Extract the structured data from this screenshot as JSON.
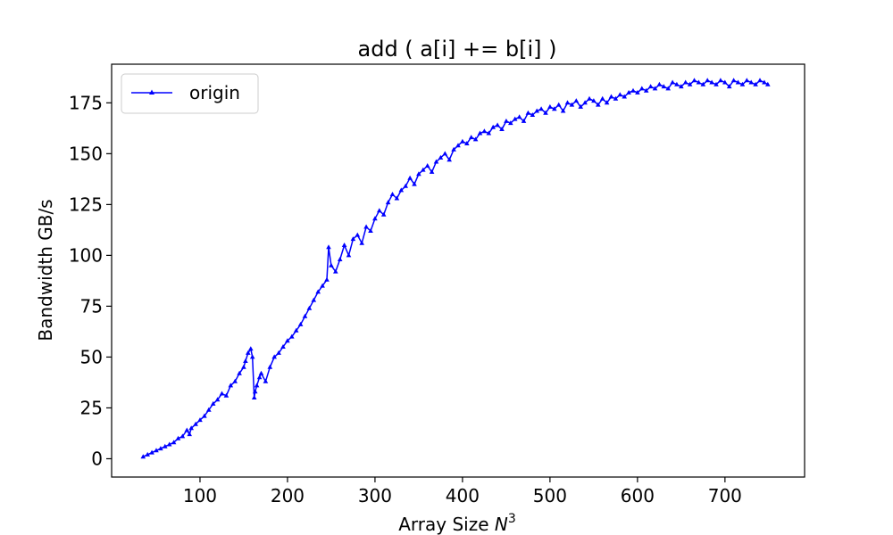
{
  "chart_data": {
    "type": "line",
    "title": "add ( a[i] += b[i] )",
    "xlabel": "Array Size",
    "xlabel_var": "N",
    "xlabel_sup": "3",
    "ylabel": "Bandwidth GB/s",
    "xlim": [
      -1,
      791
    ],
    "ylim": [
      -9,
      194
    ],
    "xticks": [
      100,
      200,
      300,
      400,
      500,
      600,
      700
    ],
    "yticks": [
      0,
      25,
      50,
      75,
      100,
      125,
      150,
      175
    ],
    "grid": false,
    "legend_position": "top-left",
    "series": [
      {
        "name": "origin",
        "color": "#0000ff",
        "marker": "triangle",
        "x": [
          35,
          40,
          45,
          50,
          55,
          60,
          65,
          70,
          75,
          80,
          85,
          88,
          90,
          95,
          100,
          105,
          110,
          115,
          120,
          125,
          130,
          135,
          140,
          145,
          150,
          152,
          155,
          158,
          160,
          162,
          163,
          165,
          168,
          170,
          175,
          180,
          185,
          190,
          195,
          200,
          205,
          210,
          215,
          220,
          225,
          230,
          235,
          240,
          245,
          247,
          250,
          255,
          260,
          265,
          270,
          275,
          280,
          285,
          290,
          295,
          300,
          305,
          310,
          315,
          320,
          325,
          330,
          335,
          340,
          345,
          350,
          355,
          360,
          365,
          370,
          375,
          380,
          385,
          390,
          395,
          400,
          405,
          410,
          415,
          420,
          425,
          430,
          435,
          440,
          445,
          450,
          455,
          460,
          465,
          470,
          475,
          480,
          485,
          490,
          495,
          500,
          505,
          510,
          515,
          520,
          525,
          530,
          535,
          540,
          545,
          550,
          555,
          560,
          565,
          570,
          575,
          580,
          585,
          590,
          595,
          600,
          605,
          610,
          615,
          620,
          625,
          630,
          635,
          640,
          645,
          650,
          655,
          660,
          665,
          670,
          675,
          680,
          685,
          690,
          695,
          700,
          705,
          710,
          715,
          720,
          725,
          730,
          735,
          740,
          745,
          749
        ],
        "y": [
          1,
          2,
          3,
          4,
          5,
          6,
          7,
          8,
          10,
          11,
          14,
          12,
          15,
          17,
          19,
          21,
          24,
          27,
          29,
          32,
          31,
          36,
          38,
          42,
          45,
          48,
          52,
          54,
          50,
          30,
          33,
          36,
          40,
          42,
          38,
          45,
          50,
          52,
          55,
          58,
          60,
          63,
          66,
          70,
          74,
          78,
          82,
          85,
          88,
          104,
          95,
          92,
          98,
          105,
          100,
          108,
          110,
          106,
          114,
          112,
          118,
          122,
          120,
          126,
          130,
          128,
          132,
          134,
          138,
          135,
          140,
          142,
          144,
          141,
          146,
          148,
          150,
          147,
          152,
          154,
          156,
          155,
          158,
          157,
          160,
          161,
          160,
          163,
          164,
          162,
          166,
          165,
          167,
          168,
          166,
          170,
          169,
          171,
          172,
          170,
          173,
          172,
          174,
          171,
          175,
          174,
          176,
          173,
          175,
          177,
          176,
          174,
          177,
          175,
          178,
          177,
          179,
          178,
          180,
          181,
          180,
          182,
          181,
          183,
          182,
          184,
          183,
          182,
          185,
          184,
          183,
          185,
          184,
          186,
          185,
          184,
          186,
          185,
          184,
          186,
          185,
          183,
          186,
          185,
          184,
          186,
          185,
          184,
          186,
          185,
          184
        ]
      }
    ]
  }
}
